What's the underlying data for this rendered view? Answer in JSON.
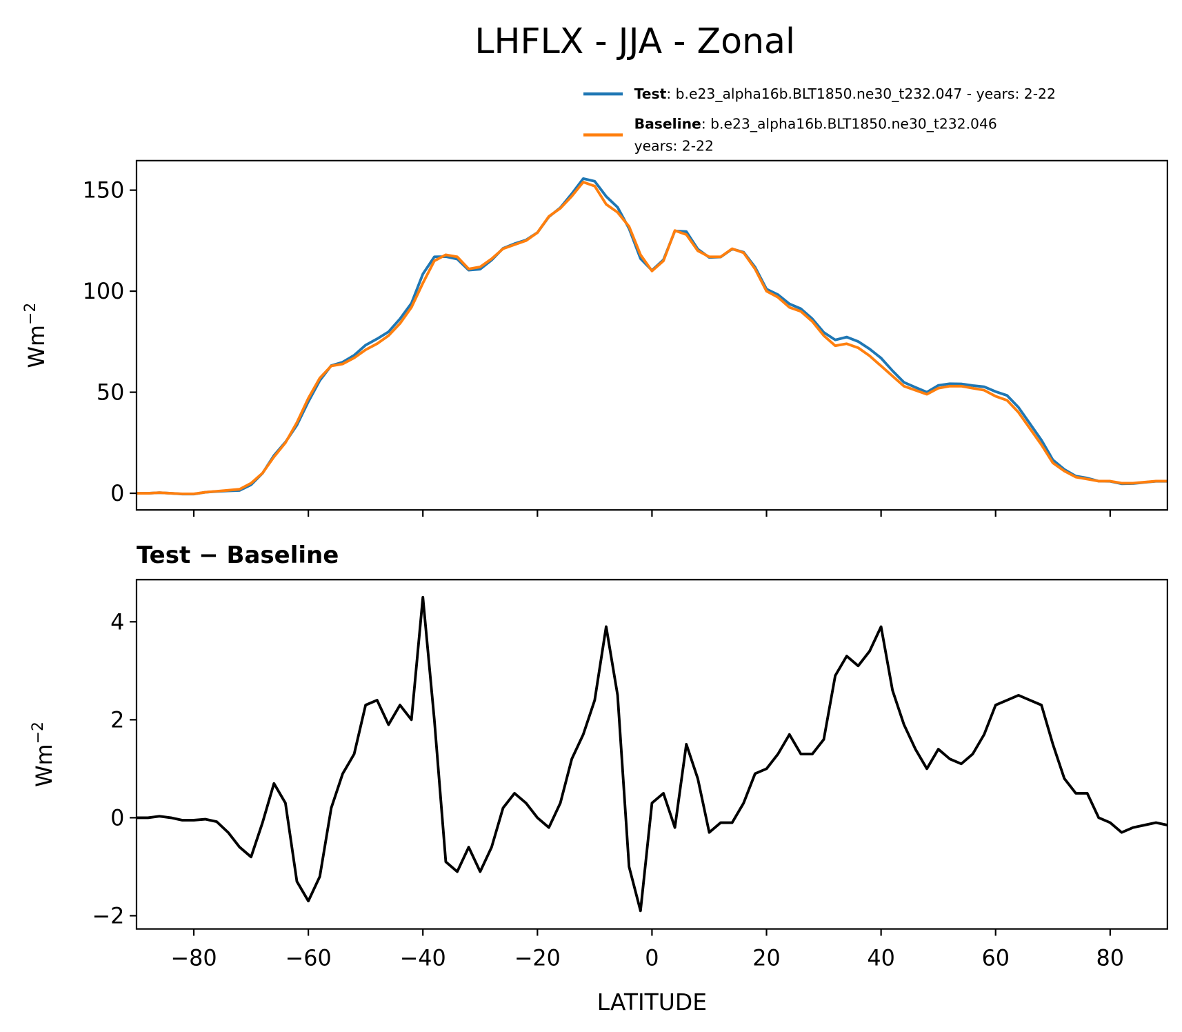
{
  "chart_data": [
    {
      "type": "line",
      "title": "LHFLX - JJA - Zonal",
      "ylabel": "Wm",
      "ylabel_sup": "−2",
      "xlim": [
        -90,
        90
      ],
      "ylim": [
        -8.25,
        164.6
      ],
      "xticks": [
        -80,
        -60,
        -40,
        -20,
        0,
        20,
        40,
        60,
        80
      ],
      "show_xtick_labels": false,
      "yticks": [
        0,
        50,
        100,
        150
      ],
      "x": [
        -90,
        -88,
        -86,
        -84,
        -82,
        -80,
        -78,
        -76,
        -74,
        -72,
        -70,
        -68,
        -66,
        -64,
        -62,
        -60,
        -58,
        -56,
        -54,
        -52,
        -50,
        -48,
        -46,
        -44,
        -42,
        -40,
        -38,
        -36,
        -34,
        -32,
        -30,
        -28,
        -26,
        -24,
        -22,
        -20,
        -18,
        -16,
        -14,
        -12,
        -10,
        -8,
        -6,
        -4,
        -2,
        0,
        2,
        4,
        6,
        8,
        10,
        12,
        14,
        16,
        18,
        20,
        22,
        24,
        26,
        28,
        30,
        32,
        34,
        36,
        38,
        40,
        42,
        44,
        46,
        48,
        50,
        52,
        54,
        56,
        58,
        60,
        62,
        64,
        66,
        68,
        70,
        72,
        74,
        76,
        78,
        80,
        82,
        84,
        86,
        88,
        90
      ],
      "legend": "upper right",
      "series": [
        {
          "name": "Test",
          "label": ": b.e23_alpha16b.BLT1850.ne30_t232.047 - years: 2-22",
          "color": "#1f77b4",
          "values": [
            0,
            0,
            0.3,
            0,
            -0.4,
            -0.4,
            0.5,
            0.9,
            1.2,
            1.4,
            4.2,
            9.9,
            18.7,
            25.3,
            33.7,
            45.3,
            55.8,
            63.2,
            64.9,
            68.3,
            73.3,
            76.4,
            79.9,
            86.3,
            94,
            108.5,
            117,
            117.1,
            115.9,
            110.4,
            110.9,
            115.4,
            121.2,
            123.5,
            125.3,
            129,
            136.8,
            141.3,
            148.2,
            155.7,
            154.4,
            146.9,
            141.5,
            131,
            116.1,
            110.3,
            115.5,
            129.8,
            129.5,
            120.8,
            116.7,
            116.9,
            120.9,
            119.3,
            111.9,
            101,
            98.3,
            93.7,
            91.3,
            86.3,
            79.6,
            75.9,
            77.3,
            75.1,
            71.4,
            66.9,
            60.6,
            54.9,
            52.4,
            50,
            53.4,
            54.2,
            54.1,
            53.3,
            52.7,
            50.3,
            48.4,
            42.5,
            34.4,
            26.3,
            16.5,
            11.8,
            8.5,
            7.5,
            6,
            5.9,
            4.7,
            4.8,
            5.4,
            5.9,
            5.9
          ]
        },
        {
          "name": "Baseline",
          "label": ": b.e23_alpha16b.BLT1850.ne30_t232.046",
          "label2": "years: 2-22",
          "color": "#ff7f0e",
          "values": [
            0,
            0,
            0.3,
            0,
            -0.3,
            -0.3,
            0.5,
            1,
            1.5,
            2,
            5,
            10,
            18,
            25,
            35,
            47,
            57,
            63,
            64,
            67,
            71,
            74,
            78,
            84,
            92,
            104,
            115,
            118,
            117,
            111,
            112,
            116,
            121,
            123,
            125,
            129,
            137,
            141,
            147,
            154,
            152,
            143,
            139,
            132,
            118,
            110,
            115,
            130,
            128,
            120,
            117,
            117,
            121,
            119,
            111,
            100,
            97,
            92,
            90,
            85,
            78,
            73,
            74,
            72,
            68,
            63,
            58,
            53,
            51,
            49,
            52,
            53,
            53,
            52,
            51,
            48,
            46,
            40,
            32,
            24,
            15,
            11,
            8,
            7,
            6,
            6,
            5,
            5,
            5.5,
            6,
            6
          ]
        }
      ]
    },
    {
      "type": "line",
      "title": "Test − Baseline",
      "xlabel": "LATITUDE",
      "ylabel": "Wm",
      "ylabel_sup": "−2",
      "xlim": [
        -90,
        90
      ],
      "ylim": [
        -2.27,
        4.86
      ],
      "xticks": [
        {
          "value": -80,
          "label": "−80"
        },
        {
          "value": -60,
          "label": "−60"
        },
        {
          "value": -40,
          "label": "−40"
        },
        {
          "value": -20,
          "label": "−20"
        },
        0,
        20,
        40,
        60,
        80
      ],
      "yticks": [
        {
          "value": -2,
          "label": "−2"
        },
        0,
        2,
        4
      ],
      "x": [
        -90,
        -88,
        -86,
        -84,
        -82,
        -80,
        -78,
        -76,
        -74,
        -72,
        -70,
        -68,
        -66,
        -64,
        -62,
        -60,
        -58,
        -56,
        -54,
        -52,
        -50,
        -48,
        -46,
        -44,
        -42,
        -40,
        -38,
        -36,
        -34,
        -32,
        -30,
        -28,
        -26,
        -24,
        -22,
        -20,
        -18,
        -16,
        -14,
        -12,
        -10,
        -8,
        -6,
        -4,
        -2,
        0,
        2,
        4,
        6,
        8,
        10,
        12,
        14,
        16,
        18,
        20,
        22,
        24,
        26,
        28,
        30,
        32,
        34,
        36,
        38,
        40,
        42,
        44,
        46,
        48,
        50,
        52,
        54,
        56,
        58,
        60,
        62,
        64,
        66,
        68,
        70,
        72,
        74,
        76,
        78,
        80,
        82,
        84,
        86,
        88,
        90
      ],
      "series": [
        {
          "color": "#000000",
          "values": [
            0,
            0,
            0.03,
            0,
            -0.05,
            -0.05,
            -0.03,
            -0.08,
            -0.3,
            -0.6,
            -0.8,
            -0.1,
            0.7,
            0.3,
            -1.3,
            -1.7,
            -1.2,
            0.2,
            0.9,
            1.3,
            2.3,
            2.4,
            1.9,
            2.3,
            2.0,
            4.5,
            2.0,
            -0.9,
            -1.1,
            -0.6,
            -1.1,
            -0.6,
            0.2,
            0.5,
            0.3,
            0,
            -0.2,
            0.3,
            1.2,
            1.7,
            2.4,
            3.9,
            2.5,
            -1.0,
            -1.9,
            0.3,
            0.5,
            -0.2,
            1.5,
            0.8,
            -0.3,
            -0.1,
            -0.1,
            0.3,
            0.9,
            1.0,
            1.3,
            1.7,
            1.3,
            1.3,
            1.6,
            2.9,
            3.3,
            3.1,
            3.4,
            3.9,
            2.6,
            1.9,
            1.4,
            1.0,
            1.4,
            1.2,
            1.1,
            1.3,
            1.7,
            2.3,
            2.4,
            2.5,
            2.4,
            2.3,
            1.5,
            0.8,
            0.5,
            0.5,
            0.0,
            -0.1,
            -0.3,
            -0.2,
            -0.15,
            -0.1,
            -0.15
          ]
        }
      ]
    }
  ]
}
